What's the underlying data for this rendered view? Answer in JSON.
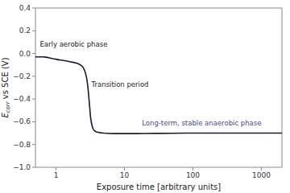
{
  "chart_data": {
    "type": "line",
    "title": "",
    "xlabel": "Exposure time [arbitrary units]",
    "ylabel": "Ecorr vs SCE (V)",
    "log": "x",
    "grid": false,
    "xlim": [
      0.5,
      2000
    ],
    "ylim": [
      -1.0,
      0.4
    ],
    "xticks": [
      1,
      10,
      100,
      1000
    ],
    "yticks": [
      {
        "value": -1.0,
        "label": "−1.0"
      },
      {
        "value": -0.8,
        "label": "−0.8"
      },
      {
        "value": -0.6,
        "label": "−0.6"
      },
      {
        "value": -0.4,
        "label": "−0.4"
      },
      {
        "value": -0.2,
        "label": "−0.2"
      },
      {
        "value": 0.0,
        "label": "0.0"
      },
      {
        "value": 0.2,
        "label": "0.2"
      },
      {
        "value": 0.4,
        "label": "0.4"
      }
    ],
    "color": "#1a1a2e",
    "x": [
      0.5,
      0.55,
      0.6,
      0.65,
      0.7,
      0.75,
      0.8,
      0.85,
      0.9,
      1.0,
      1.1,
      1.2,
      1.4,
      1.6,
      1.8,
      2.0,
      2.2,
      2.4,
      2.5,
      2.6,
      2.7,
      2.8,
      2.85,
      2.9,
      2.95,
      3.0,
      3.05,
      3.1,
      3.15,
      3.2,
      3.3,
      3.4,
      3.5,
      3.6,
      3.7,
      3.8,
      3.9,
      4.0,
      4.5,
      5.0,
      6.0,
      7.0,
      8.0,
      10.0,
      15.0,
      20.0,
      30.0,
      50.0,
      80.0,
      100.0,
      150.0,
      200.0,
      500.0,
      1000.0,
      2000.0
    ],
    "values": [
      -0.03,
      -0.03,
      -0.03,
      -0.03,
      -0.032,
      -0.034,
      -0.038,
      -0.042,
      -0.046,
      -0.05,
      -0.055,
      -0.058,
      -0.065,
      -0.072,
      -0.078,
      -0.085,
      -0.095,
      -0.11,
      -0.125,
      -0.145,
      -0.175,
      -0.215,
      -0.245,
      -0.28,
      -0.32,
      -0.37,
      -0.42,
      -0.47,
      -0.52,
      -0.565,
      -0.615,
      -0.645,
      -0.665,
      -0.675,
      -0.682,
      -0.686,
      -0.689,
      -0.691,
      -0.697,
      -0.7,
      -0.703,
      -0.704,
      -0.704,
      -0.704,
      -0.704,
      -0.703,
      -0.702,
      -0.701,
      -0.7,
      -0.7,
      -0.7,
      -0.7,
      -0.7,
      -0.7,
      -0.7
    ],
    "annotations": [
      {
        "text": "Early aerobic phase",
        "x": 0.58,
        "y": 0.06
      },
      {
        "text": "Transition period",
        "x": 3.3,
        "y": -0.29
      },
      {
        "text": "Long-term, stable anaerobic phase",
        "x": 18.0,
        "y": -0.635,
        "color": "#4a4a8a"
      }
    ]
  }
}
